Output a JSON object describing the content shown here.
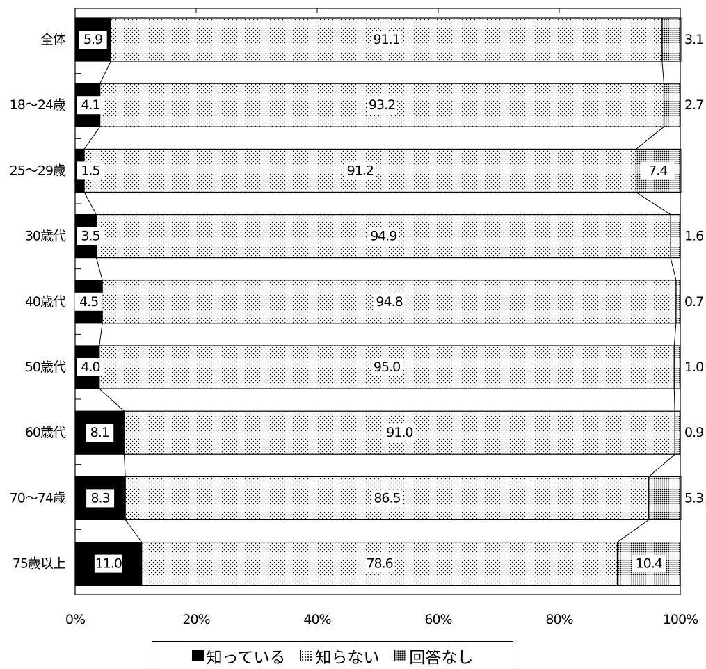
{
  "chart_data": {
    "type": "bar",
    "orientation": "horizontal",
    "stacked": true,
    "title": "",
    "categories": [
      "全体",
      "18～24歳",
      "25～29歳",
      "30歳代",
      "40歳代",
      "50歳代",
      "60歳代",
      "70～74歳",
      "75歳以上"
    ],
    "series": [
      {
        "name": "知っている",
        "values": [
          5.9,
          4.1,
          1.5,
          3.5,
          4.5,
          4.0,
          8.1,
          8.3,
          11.0
        ],
        "color": "#000000",
        "pattern": "solid"
      },
      {
        "name": "知らない",
        "values": [
          91.1,
          93.2,
          91.2,
          94.9,
          94.8,
          95.0,
          91.0,
          86.5,
          78.6
        ],
        "color": "#ffffff",
        "pattern": "sparse-dots"
      },
      {
        "name": "回答なし",
        "values": [
          3.1,
          2.7,
          7.4,
          1.6,
          0.7,
          1.0,
          0.9,
          5.3,
          10.4
        ],
        "color": "#ffffff",
        "pattern": "dense-dots"
      }
    ],
    "xlim": [
      0,
      100
    ],
    "x_ticks": [
      "0%",
      "20%",
      "40%",
      "60%",
      "80%",
      "100%"
    ],
    "series_lines": true,
    "legend_position": "bottom"
  },
  "legend": {
    "items": [
      {
        "label": "知っている",
        "icon": "filled-square-icon"
      },
      {
        "label": "知らない",
        "icon": "dotted-square-icon"
      },
      {
        "label": "回答なし",
        "icon": "dense-dotted-square-icon"
      }
    ]
  }
}
